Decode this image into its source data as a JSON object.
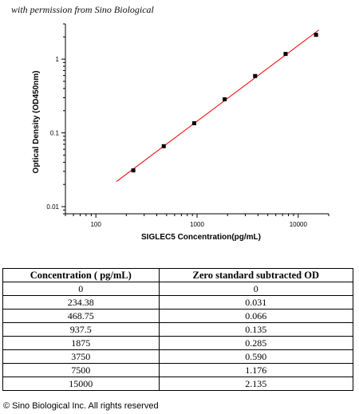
{
  "permission_note": "with permission from Sino Biological",
  "chart_data": {
    "type": "scatter",
    "xlabel": "SIGLEC5  Concentration(pg/mL)",
    "ylabel": "Optical Density (OD450nm)",
    "x_scale": "log",
    "y_scale": "log",
    "xlim": [
      50,
      20000
    ],
    "ylim": [
      0.008,
      3
    ],
    "x_ticks": [
      {
        "value": 100,
        "label": "100"
      },
      {
        "value": 1000,
        "label": "1000"
      },
      {
        "value": 10000,
        "label": "10000"
      }
    ],
    "y_ticks": [
      {
        "value": 0.01,
        "label": "0.01"
      },
      {
        "value": 0.1,
        "label": "0.1"
      },
      {
        "value": 1,
        "label": "1"
      }
    ],
    "grid": false,
    "points": [
      {
        "x": 234.38,
        "y": 0.031
      },
      {
        "x": 468.75,
        "y": 0.066
      },
      {
        "x": 937.5,
        "y": 0.135
      },
      {
        "x": 1875,
        "y": 0.285
      },
      {
        "x": 3750,
        "y": 0.59
      },
      {
        "x": 7500,
        "y": 1.176
      },
      {
        "x": 15000,
        "y": 2.135
      }
    ],
    "fit_line": {
      "x_start": 160,
      "x_end": 16000,
      "color": "#e60000"
    },
    "marker_color": "#000000"
  },
  "table": {
    "headers": [
      "Concentration ( pg/mL)",
      "Zero standard subtracted OD"
    ],
    "rows": [
      [
        "0",
        "0"
      ],
      [
        "234.38",
        "0.031"
      ],
      [
        "468.75",
        "0.066"
      ],
      [
        "937.5",
        "0.135"
      ],
      [
        "1875",
        "0.285"
      ],
      [
        "3750",
        "0.590"
      ],
      [
        "7500",
        "1.176"
      ],
      [
        "15000",
        "2.135"
      ]
    ]
  },
  "copyright": "© Sino Biological Inc. All rights reserved"
}
